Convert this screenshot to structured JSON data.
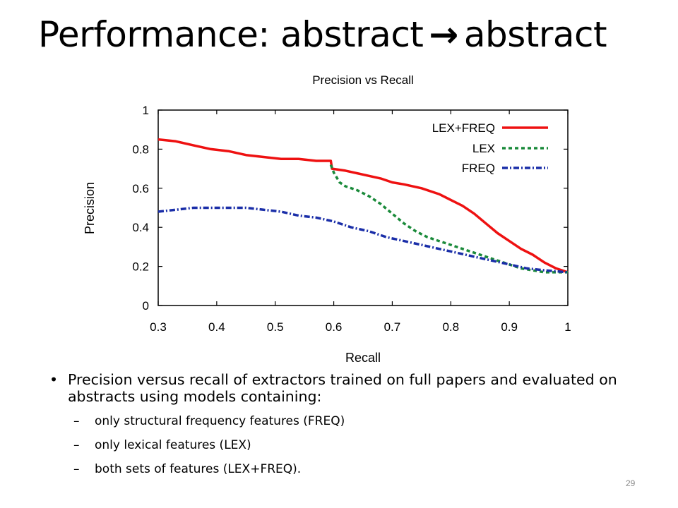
{
  "slide": {
    "title_left": "Performance: abstract",
    "title_arrow": "→",
    "title_right": "abstract",
    "page_number": "29"
  },
  "bullets": {
    "main": "Precision versus recall of extractors trained on full papers and evaluated on abstracts using models containing:",
    "sub": [
      "only structural frequency features (FREQ)",
      "only lexical features (LEX)",
      "both sets of features (LEX+FREQ)."
    ]
  },
  "chart_data": {
    "type": "line",
    "title": "Precision vs Recall",
    "xlabel": "Recall",
    "ylabel": "Precision",
    "xlim": [
      0.3,
      1
    ],
    "ylim": [
      0,
      1
    ],
    "xticks": [
      0.3,
      0.4,
      0.5,
      0.6,
      0.7,
      0.8,
      0.9,
      1
    ],
    "xtick_labels": [
      "0.3",
      "0.4",
      "0.5",
      "0.6",
      "0.7",
      "0.8",
      "0.9",
      "1"
    ],
    "yticks": [
      0,
      0.2,
      0.4,
      0.6,
      0.8,
      1
    ],
    "ytick_labels": [
      "0",
      "0.2",
      "0.4",
      "0.6",
      "0.8",
      "1"
    ],
    "grid": false,
    "legend_position": "top-right",
    "series": [
      {
        "name": "LEX+FREQ",
        "color": "#ee1111",
        "style": "solid",
        "x": [
          0.3,
          0.33,
          0.36,
          0.39,
          0.42,
          0.45,
          0.48,
          0.51,
          0.54,
          0.57,
          0.595,
          0.597,
          0.62,
          0.65,
          0.68,
          0.7,
          0.72,
          0.75,
          0.78,
          0.8,
          0.82,
          0.84,
          0.86,
          0.88,
          0.9,
          0.92,
          0.94,
          0.96,
          0.98,
          1.0
        ],
        "y": [
          0.85,
          0.84,
          0.82,
          0.8,
          0.79,
          0.77,
          0.76,
          0.75,
          0.75,
          0.74,
          0.74,
          0.7,
          0.69,
          0.67,
          0.65,
          0.63,
          0.62,
          0.6,
          0.57,
          0.54,
          0.51,
          0.47,
          0.42,
          0.37,
          0.33,
          0.29,
          0.26,
          0.22,
          0.19,
          0.17
        ]
      },
      {
        "name": "LEX",
        "color": "#1a8a3a",
        "style": "dashed",
        "x": [
          0.595,
          0.6,
          0.61,
          0.62,
          0.64,
          0.66,
          0.68,
          0.7,
          0.72,
          0.74,
          0.76,
          0.78,
          0.8,
          0.82,
          0.84,
          0.86,
          0.88,
          0.9,
          0.92,
          0.94,
          0.96,
          0.98,
          1.0
        ],
        "y": [
          0.72,
          0.68,
          0.63,
          0.61,
          0.59,
          0.56,
          0.52,
          0.47,
          0.42,
          0.38,
          0.35,
          0.33,
          0.31,
          0.29,
          0.27,
          0.25,
          0.23,
          0.21,
          0.19,
          0.18,
          0.17,
          0.17,
          0.17
        ]
      },
      {
        "name": "FREQ",
        "color": "#1a2ea8",
        "style": "dashdot",
        "x": [
          0.3,
          0.33,
          0.36,
          0.39,
          0.42,
          0.45,
          0.48,
          0.51,
          0.54,
          0.57,
          0.6,
          0.63,
          0.66,
          0.69,
          0.72,
          0.75,
          0.78,
          0.81,
          0.84,
          0.87,
          0.9,
          0.93,
          0.96,
          1.0
        ],
        "y": [
          0.48,
          0.49,
          0.5,
          0.5,
          0.5,
          0.5,
          0.49,
          0.48,
          0.46,
          0.45,
          0.43,
          0.4,
          0.38,
          0.35,
          0.33,
          0.31,
          0.29,
          0.27,
          0.25,
          0.23,
          0.21,
          0.19,
          0.18,
          0.17
        ]
      }
    ]
  }
}
